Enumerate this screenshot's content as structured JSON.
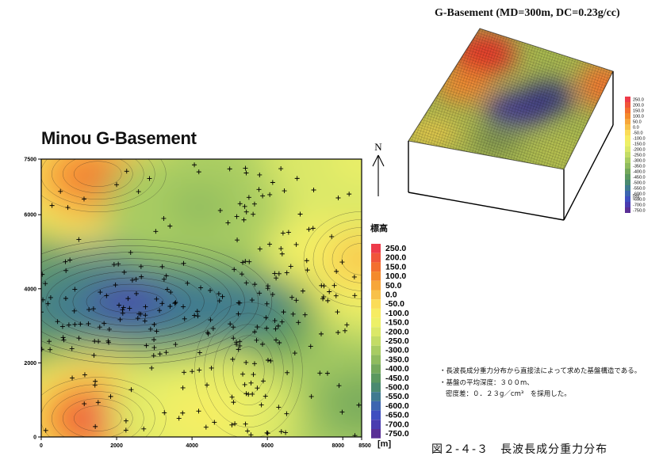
{
  "titles": {
    "main": "Minou G-Basement",
    "perspective": "G-Basement (MD=300m, DC=0.23g/cc)"
  },
  "north_label": "N",
  "legend": {
    "title": "標高",
    "unit": "[m]",
    "labels": [
      "250.0",
      "200.0",
      "150.0",
      "100.0",
      "50.0",
      "0.0",
      "-50.0",
      "-100.0",
      "-150.0",
      "-200.0",
      "-250.0",
      "-300.0",
      "-350.0",
      "-400.0",
      "-450.0",
      "-500.0",
      "-550.0",
      "-600.0",
      "-650.0",
      "-700.0",
      "-750.0"
    ],
    "colors": [
      "#ee3b4a",
      "#f0553a",
      "#f36f2f",
      "#f48a2c",
      "#f7a63a",
      "#f8c14a",
      "#fbdc58",
      "#f7ec62",
      "#edf067",
      "#dbe868",
      "#c3dc66",
      "#a8cc62",
      "#8fbb5e",
      "#74a85b",
      "#5b985f",
      "#4a8a70",
      "#3f7a90",
      "#3d66b0",
      "#3f4fc0",
      "#4a3cb0",
      "#5a2f96"
    ]
  },
  "mini_legend": {
    "unit": "[m]",
    "labels": [
      "250.0",
      "200.0",
      "150.0",
      "100.0",
      "50.0",
      "0.0",
      "-50.0",
      "-100.0",
      "-150.0",
      "-200.0",
      "-250.0",
      "-300.0",
      "-350.0",
      "-400.0",
      "-450.0",
      "-500.0",
      "-550.0",
      "-600.0",
      "-650.0",
      "-700.0",
      "-750.0"
    ]
  },
  "notes": {
    "line1": "・長波長成分重力分布から直接法によって求めた基盤構造である。",
    "line2": "・基盤の平均深度：３００m、",
    "line3": "密度差：０．２３g／cm³　を採用した。"
  },
  "caption": "図２-４-３　長波長成分重力分布",
  "chart_data": {
    "type": "heatmap",
    "title": "Minou G-Basement",
    "x_ticks": [
      "0",
      "2000",
      "4000",
      "6000",
      "8000",
      "8500"
    ],
    "y_ticks": [
      "0",
      "2000",
      "4000",
      "6000",
      "7500"
    ],
    "xlim": [
      0,
      8500
    ],
    "ylim": [
      0,
      7500
    ],
    "value_range": [
      -750,
      250
    ],
    "unit": "[m]",
    "grid": false,
    "legend_position": "right",
    "features": [
      {
        "x": 2300,
        "y": 3700,
        "value": -700
      },
      {
        "x": 1400,
        "y": 7000,
        "value": 150
      },
      {
        "x": 1500,
        "y": 500,
        "value": 250
      },
      {
        "x": 5200,
        "y": 1400,
        "value": -300
      },
      {
        "x": 5800,
        "y": 2400,
        "value": -450
      },
      {
        "x": 4200,
        "y": 6200,
        "value": -350
      },
      {
        "x": 8500,
        "y": 4800,
        "value": 0
      },
      {
        "x": 8500,
        "y": 7500,
        "value": -150
      },
      {
        "x": 8500,
        "y": 900,
        "value": -400
      },
      {
        "x": 4300,
        "y": 600,
        "value": -100
      }
    ]
  }
}
